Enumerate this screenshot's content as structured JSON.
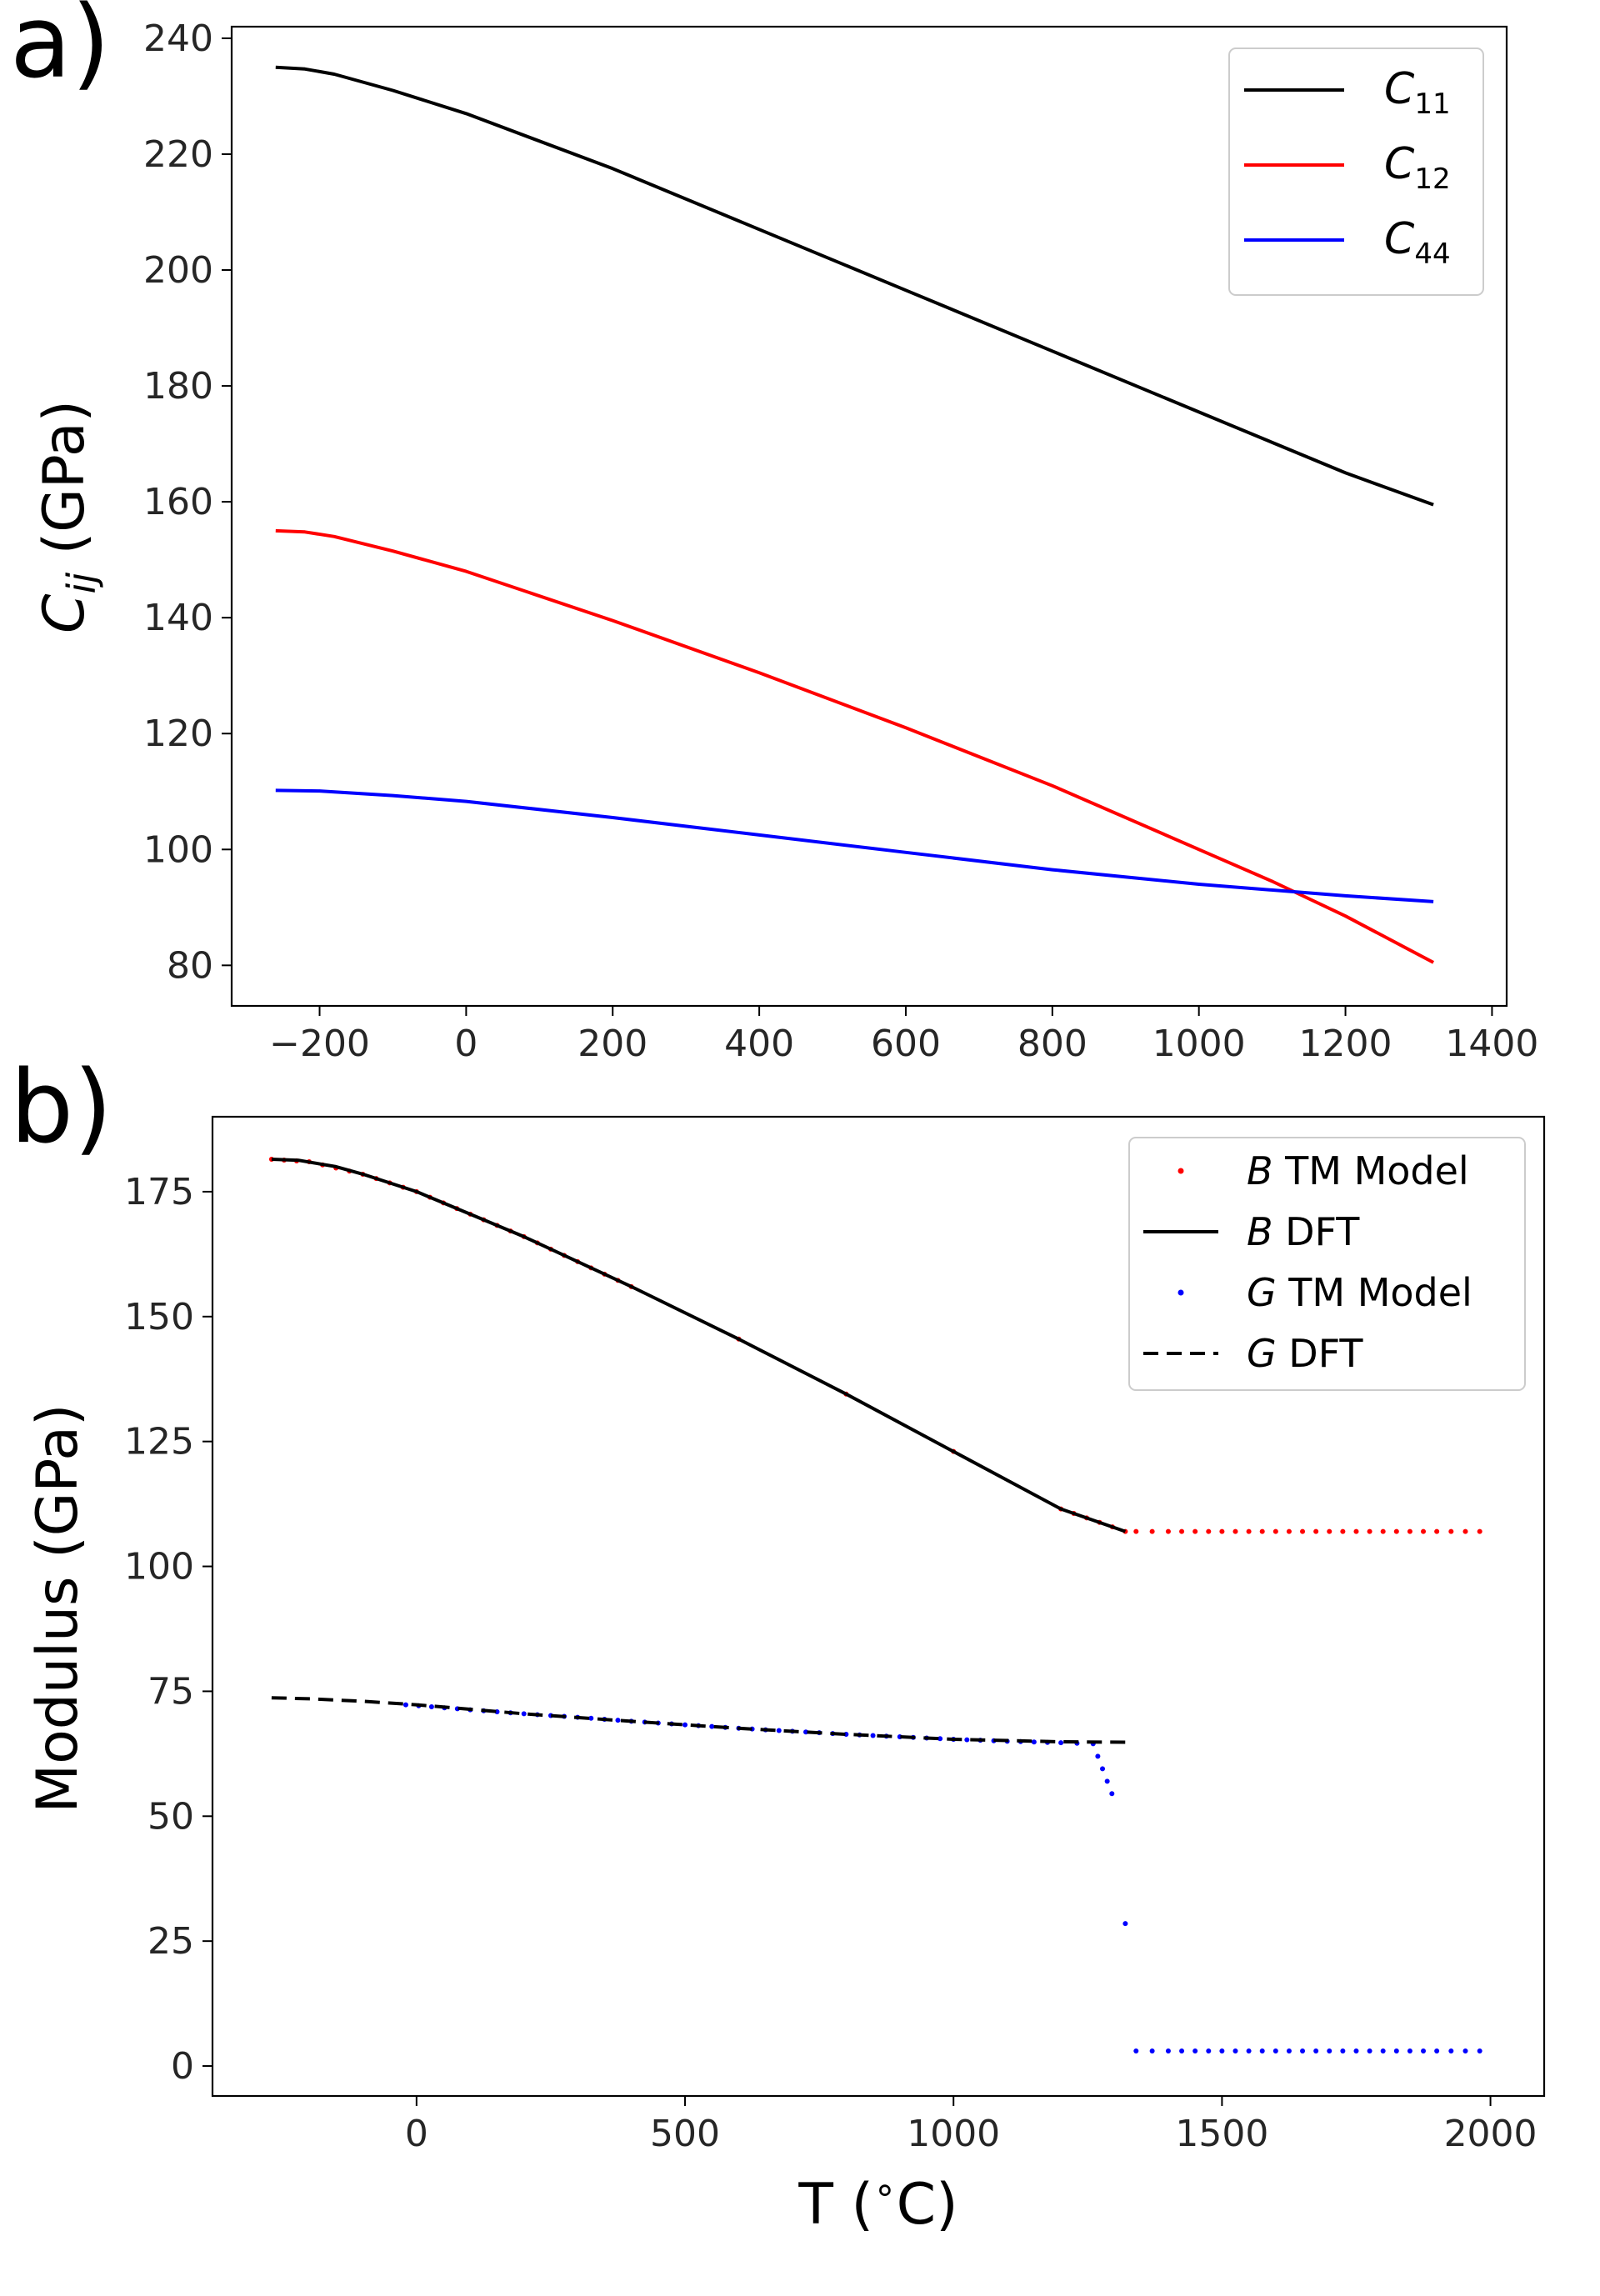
{
  "chart_data": [
    {
      "panel_label": "a)",
      "type": "line",
      "xlabel": "",
      "ylabel": "C_ij (GPa)",
      "ylabel_parts": {
        "symbol": "C",
        "subscript": "ij",
        "unit": " (GPa)"
      },
      "xlim": [
        -320,
        1420
      ],
      "ylim": [
        73,
        242
      ],
      "x_ticks": [
        "−200",
        "0",
        "200",
        "400",
        "600",
        "800",
        "1000",
        "1200",
        "1400"
      ],
      "x_tick_values": [
        -200,
        0,
        200,
        400,
        600,
        800,
        1000,
        1200,
        1400
      ],
      "y_ticks": [
        "80",
        "100",
        "120",
        "140",
        "160",
        "180",
        "200",
        "220",
        "240"
      ],
      "y_tick_values": [
        80,
        100,
        120,
        140,
        160,
        180,
        200,
        220,
        240
      ],
      "legend_position": "top-right",
      "series": [
        {
          "name": "C11",
          "label_symbol": "C",
          "label_sub": "11",
          "color": "#000000",
          "x": [
            -260,
            -220,
            -180,
            -100,
            0,
            200,
            400,
            600,
            800,
            1000,
            1200,
            1320
          ],
          "y": [
            235,
            234.7,
            233.8,
            231,
            227,
            217.5,
            207,
            196.5,
            186,
            175.5,
            165,
            159.5
          ]
        },
        {
          "name": "C12",
          "label_symbol": "C",
          "label_sub": "12",
          "color": "#ff0000",
          "x": [
            -260,
            -220,
            -180,
            -100,
            0,
            200,
            400,
            600,
            800,
            1000,
            1100,
            1200,
            1320
          ],
          "y": [
            155,
            154.8,
            154,
            151.5,
            148,
            139.5,
            130.5,
            121,
            111,
            100,
            94.5,
            88.5,
            80.5
          ]
        },
        {
          "name": "C44",
          "label_symbol": "C",
          "label_sub": "44",
          "color": "#0000ff",
          "x": [
            -260,
            -200,
            -100,
            0,
            200,
            400,
            600,
            800,
            1000,
            1200,
            1320
          ],
          "y": [
            110.2,
            110.1,
            109.3,
            108.3,
            105.5,
            102.5,
            99.5,
            96.5,
            94,
            92,
            91
          ]
        }
      ]
    },
    {
      "panel_label": "b)",
      "type": "line",
      "xlabel": "T (°C)",
      "xlabel_parts": {
        "pre": "T (",
        "sup": "∘",
        "post": "C)"
      },
      "ylabel": "Modulus (GPa)",
      "xlim": [
        -380,
        2100
      ],
      "ylim": [
        -6,
        190
      ],
      "x_ticks": [
        "0",
        "500",
        "1000",
        "1500",
        "2000"
      ],
      "x_tick_values": [
        0,
        500,
        1000,
        1500,
        2000
      ],
      "y_ticks": [
        "0",
        "25",
        "50",
        "75",
        "100",
        "125",
        "150",
        "175"
      ],
      "y_tick_values": [
        0,
        25,
        50,
        75,
        100,
        125,
        150,
        175
      ],
      "legend_position": "top-right",
      "series": [
        {
          "name": "B TM Model",
          "label_symbol": "B",
          "label_text": " TM Model",
          "style": "dots",
          "color": "#ff0000",
          "x": [
            -270,
            -200,
            -100,
            0,
            200,
            400,
            600,
            800,
            1000,
            1200,
            1320,
            1340,
            1400,
            1500,
            1600,
            1700,
            1800,
            1900,
            1980
          ],
          "y": [
            181.5,
            181,
            178.5,
            175,
            166,
            156,
            145.5,
            134.5,
            123,
            111.5,
            107,
            107,
            107,
            107,
            107,
            107,
            107,
            107,
            107
          ]
        },
        {
          "name": "B DFT",
          "label_symbol": "B",
          "label_text": " DFT",
          "style": "solid",
          "color": "#000000",
          "x": [
            -270,
            -220,
            -150,
            -100,
            0,
            200,
            400,
            600,
            800,
            1000,
            1200,
            1320
          ],
          "y": [
            181.5,
            181.3,
            180,
            178.5,
            175,
            166,
            156,
            145.5,
            134.5,
            123,
            111.5,
            107
          ]
        },
        {
          "name": "G TM Model",
          "label_symbol": "G",
          "label_text": " TM Model",
          "style": "dots",
          "color": "#0000ff",
          "x": [
            -20,
            100,
            200,
            300,
            400,
            500,
            600,
            700,
            800,
            900,
            1000,
            1100,
            1200,
            1260,
            1295,
            1320,
            1340,
            1400,
            1500,
            1600,
            1700,
            1800,
            1900,
            1980
          ],
          "y": [
            72.3,
            71.3,
            70.5,
            69.8,
            69,
            68.3,
            67.6,
            67,
            66.4,
            65.9,
            65.4,
            65,
            64.7,
            64.5,
            54.5,
            28.5,
            3,
            3,
            3,
            3,
            3,
            3,
            3,
            3
          ]
        },
        {
          "name": "G DFT",
          "label_symbol": "G",
          "label_text": " DFT",
          "style": "dashed",
          "color": "#000000",
          "x": [
            -270,
            -200,
            -100,
            0,
            200,
            400,
            600,
            800,
            1000,
            1200,
            1330
          ],
          "y": [
            73.7,
            73.5,
            73,
            72.3,
            70.5,
            69,
            67.6,
            66.4,
            65.4,
            64.9,
            64.8
          ]
        }
      ]
    }
  ]
}
